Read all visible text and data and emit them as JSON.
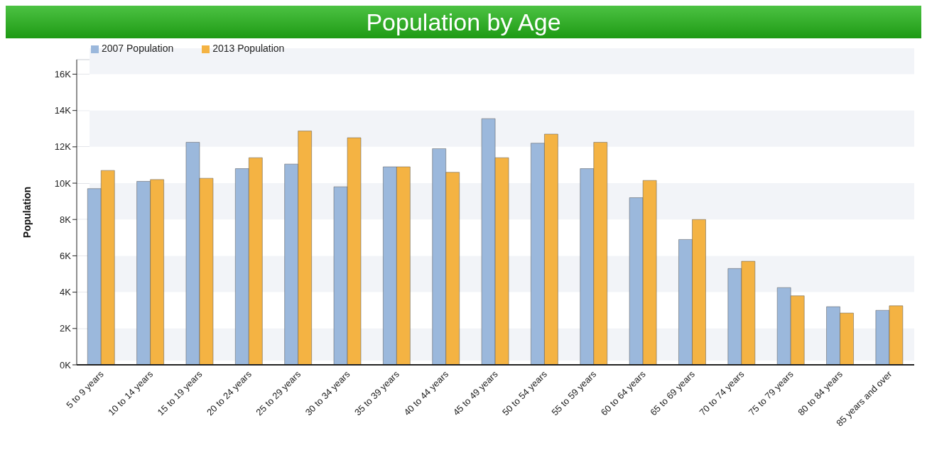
{
  "chart_data": {
    "type": "bar",
    "title": "Population by Age",
    "ylabel": "Population",
    "categories": [
      "5 to 9 years",
      "10 to 14 years",
      "15 to 19 years",
      "20 to 24 years",
      "25 to 29 years",
      "30 to 34 years",
      "35 to 39 years",
      "40 to 44 years",
      "45 to 49 years",
      "50 to 54 years",
      "55 to 59 years",
      "60 to 64 years",
      "65 to 69 years",
      "70 to 74 years",
      "75 to 79 years",
      "80 to 84 years",
      "85 years and over"
    ],
    "series": [
      {
        "name": "2007 Population",
        "color": "#9bb8dc",
        "values": [
          9700,
          10100,
          12250,
          10800,
          11050,
          9800,
          10900,
          11900,
          13550,
          12200,
          10800,
          9200,
          6900,
          5300,
          4250,
          3200,
          3000
        ]
      },
      {
        "name": "2013 Population",
        "color": "#f4b343",
        "values": [
          10700,
          10200,
          10270,
          11400,
          12870,
          12500,
          10900,
          10600,
          11400,
          12700,
          12250,
          10150,
          8000,
          5700,
          3800,
          2850,
          3250
        ]
      }
    ],
    "ylim": [
      0,
      16800
    ],
    "yticks": [
      {
        "value": 0,
        "label": "0K"
      },
      {
        "value": 2000,
        "label": "2K"
      },
      {
        "value": 4000,
        "label": "4K"
      },
      {
        "value": 6000,
        "label": "6K"
      },
      {
        "value": 8000,
        "label": "8K"
      },
      {
        "value": 10000,
        "label": "10K"
      },
      {
        "value": 12000,
        "label": "12K"
      },
      {
        "value": 14000,
        "label": "14K"
      },
      {
        "value": 16000,
        "label": "16K"
      }
    ],
    "grid": "y",
    "legend": "top left"
  }
}
